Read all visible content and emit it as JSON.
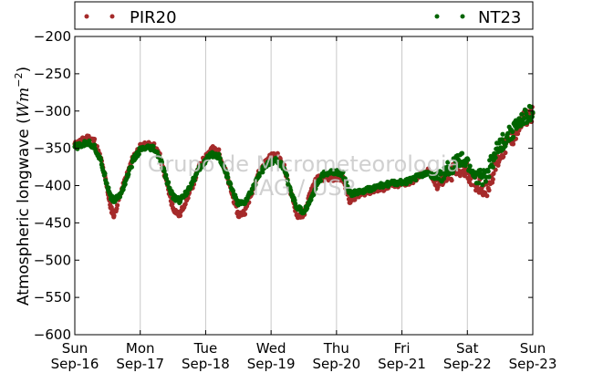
{
  "chart_data": {
    "type": "scatter",
    "title": "",
    "xlabel": "",
    "ylabel": {
      "text": "Atmospheric longwave (",
      "math": "Wm",
      "sup": "−2",
      "close": ")"
    },
    "ylim": [
      -600,
      -200
    ],
    "yticks": [
      -600,
      -550,
      -500,
      -450,
      -400,
      -350,
      -300,
      -250,
      -200
    ],
    "ytick_labels": [
      "−600",
      "−550",
      "−500",
      "−450",
      "−400",
      "−350",
      "−300",
      "−250",
      "−200"
    ],
    "xlim": [
      0,
      7
    ],
    "xticks": [
      {
        "day": "Sun",
        "date": "Sep-16"
      },
      {
        "day": "Mon",
        "date": "Sep-17"
      },
      {
        "day": "Tue",
        "date": "Sep-18"
      },
      {
        "day": "Wed",
        "date": "Sep-19"
      },
      {
        "day": "Thu",
        "date": "Sep-20"
      },
      {
        "day": "Fri",
        "date": "Sep-21"
      },
      {
        "day": "Sat",
        "date": "Sep-22"
      },
      {
        "day": "Sun",
        "date": "Sep-23"
      }
    ],
    "grid": "vertical",
    "legend_placement": "top (outside plot)",
    "watermark": [
      "Grupo de Micrometeorologia",
      "IAG / USP"
    ],
    "series": [
      {
        "name": "PIR20",
        "color": "#a52a2a",
        "x": [
          0,
          0.1,
          0.2,
          0.3,
          0.4,
          0.5,
          0.55,
          0.6,
          0.7,
          0.8,
          0.9,
          1.0,
          1.1,
          1.2,
          1.3,
          1.4,
          1.5,
          1.6,
          1.7,
          1.8,
          1.9,
          2.0,
          2.1,
          2.2,
          2.3,
          2.4,
          2.5,
          2.6,
          2.7,
          2.8,
          2.9,
          3.0,
          3.1,
          3.2,
          3.3,
          3.4,
          3.5,
          3.6,
          3.7,
          3.8,
          3.9,
          4.0,
          4.1,
          4.2,
          4.3,
          4.4,
          4.5,
          4.6,
          4.7,
          4.8,
          4.9,
          5.0,
          5.1,
          5.2,
          5.3,
          5.4,
          5.5,
          5.6,
          5.7,
          5.8,
          5.9,
          6.0,
          6.1,
          6.2,
          6.3,
          6.4,
          6.5,
          6.6,
          6.7,
          6.8,
          6.9,
          7.0
        ],
        "y": [
          -345,
          -340,
          -335,
          -340,
          -365,
          -405,
          -430,
          -440,
          -410,
          -385,
          -360,
          -348,
          -345,
          -345,
          -360,
          -395,
          -430,
          -440,
          -420,
          -400,
          -375,
          -360,
          -350,
          -355,
          -380,
          -410,
          -440,
          -435,
          -410,
          -385,
          -370,
          -360,
          -360,
          -375,
          -410,
          -440,
          -440,
          -410,
          -390,
          -390,
          -390,
          -390,
          -390,
          -420,
          -415,
          -410,
          -408,
          -405,
          -405,
          -400,
          -400,
          -398,
          -396,
          -392,
          -385,
          -380,
          -395,
          -395,
          -385,
          -380,
          -378,
          -380,
          -395,
          -400,
          -405,
          -380,
          -360,
          -345,
          -335,
          -320,
          -308,
          -303
        ]
      },
      {
        "name": "NT23",
        "color": "#006400",
        "x": [
          0,
          0.1,
          0.2,
          0.3,
          0.4,
          0.5,
          0.55,
          0.6,
          0.7,
          0.8,
          0.9,
          1.0,
          1.1,
          1.2,
          1.3,
          1.4,
          1.5,
          1.6,
          1.7,
          1.8,
          1.9,
          2.0,
          2.1,
          2.2,
          2.3,
          2.4,
          2.5,
          2.6,
          2.7,
          2.8,
          2.9,
          3.0,
          3.1,
          3.2,
          3.3,
          3.4,
          3.5,
          3.6,
          3.7,
          3.8,
          3.9,
          4.0,
          4.1,
          4.2,
          4.3,
          4.4,
          4.5,
          4.6,
          4.7,
          4.8,
          4.9,
          5.0,
          5.1,
          5.2,
          5.3,
          5.4,
          5.5,
          5.6,
          5.7,
          5.8,
          5.9,
          6.0,
          6.1,
          6.2,
          6.3,
          6.4,
          6.5,
          6.6,
          6.7,
          6.8,
          6.9,
          7.0
        ],
        "y": [
          -348,
          -346,
          -342,
          -348,
          -368,
          -400,
          -415,
          -420,
          -412,
          -388,
          -365,
          -352,
          -350,
          -350,
          -363,
          -392,
          -415,
          -420,
          -410,
          -395,
          -378,
          -366,
          -358,
          -360,
          -380,
          -405,
          -425,
          -422,
          -408,
          -387,
          -375,
          -368,
          -366,
          -378,
          -408,
          -430,
          -435,
          -420,
          -398,
          -385,
          -382,
          -382,
          -385,
          -410,
          -410,
          -408,
          -405,
          -402,
          -400,
          -398,
          -396,
          -396,
          -394,
          -390,
          -385,
          -382,
          -390,
          -390,
          -378,
          -370,
          -366,
          -370,
          -385,
          -390,
          -385,
          -362,
          -345,
          -335,
          -325,
          -315,
          -307,
          -302
        ]
      }
    ]
  }
}
